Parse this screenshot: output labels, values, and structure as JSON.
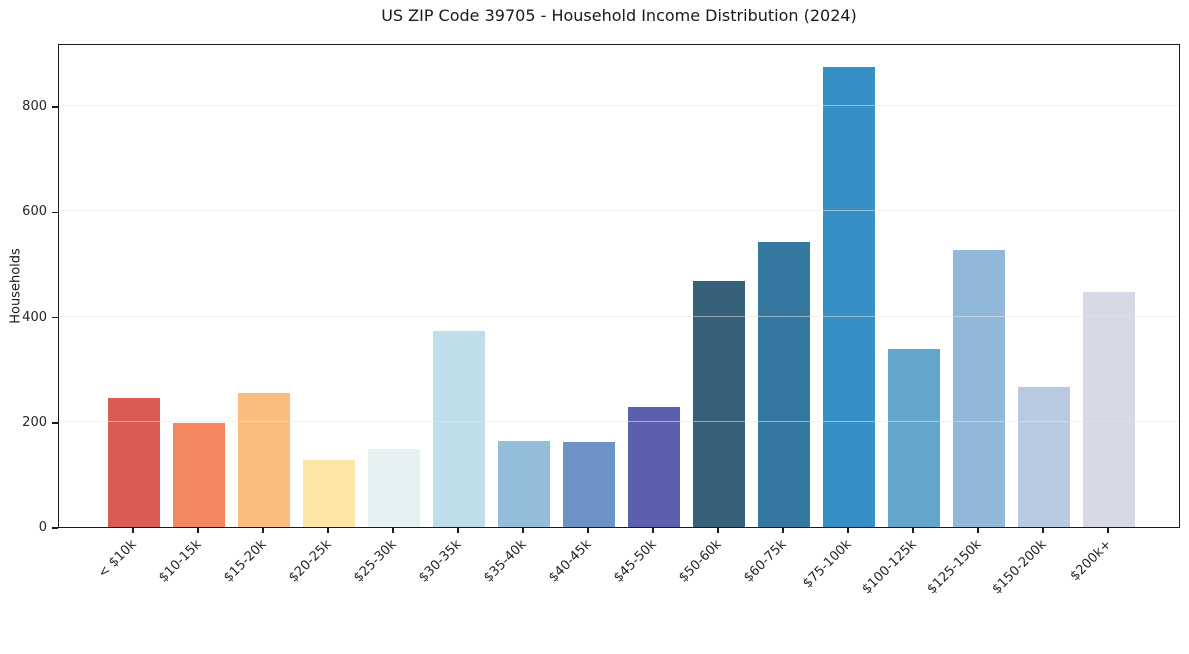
{
  "chart_data": {
    "type": "bar",
    "title": "US ZIP Code 39705 - Household Income Distribution (2024)",
    "xlabel": "",
    "ylabel": "Households",
    "categories": [
      "< $10k",
      "$10-15k",
      "$15-20k",
      "$20-25k",
      "$25-30k",
      "$30-35k",
      "$35-40k",
      "$40-45k",
      "$45-50k",
      "$50-60k",
      "$60-75k",
      "$75-100k",
      "$100-125k",
      "$125-150k",
      "$150-200k",
      "$200k+"
    ],
    "values": [
      245,
      197,
      254,
      127,
      149,
      372,
      164,
      162,
      229,
      468,
      542,
      874,
      338,
      527,
      266,
      447
    ],
    "bar_colors": [
      "#d85c52",
      "#f4875f",
      "#fabd7d",
      "#fde5a5",
      "#e6f1f2",
      "#bedfe9",
      "#93bdd9",
      "#6b93c6",
      "#5a5fae",
      "#36617b",
      "#35789f",
      "#368fc5",
      "#62a6cc",
      "#91b8d8",
      "#b8c9e1",
      "#d7d9e6"
    ],
    "yticks": [
      0,
      200,
      400,
      600,
      800
    ],
    "ylim": [
      0,
      920
    ],
    "grid": "horizontal-only",
    "legend": "none",
    "x_tick_rotation": 45,
    "plot_border_color": "#1a1a1a",
    "gridline_color": "#e4e4e4"
  }
}
